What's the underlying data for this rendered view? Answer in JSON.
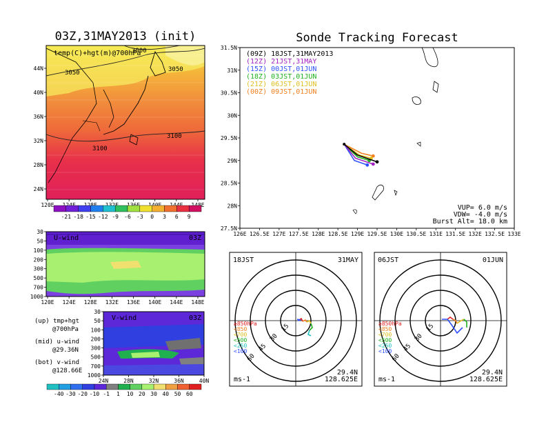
{
  "map_panel": {
    "title": "03Z,31MAY2013 (init)",
    "label": "temp(C)+hgt(m)@700hPa",
    "contours": [
      "3050",
      "3050",
      "3000",
      "3100",
      "3100"
    ],
    "lat_ticks": [
      "44N",
      "40N",
      "36N",
      "32N",
      "28N",
      "24N"
    ],
    "lon_ticks": [
      "120E",
      "124E",
      "128E",
      "132E",
      "136E",
      "140E",
      "144E",
      "148E"
    ],
    "colorbar": [
      "-21",
      "-18",
      "-15",
      "-12",
      "-9",
      "-6",
      "-3",
      "0",
      "3",
      "6",
      "9"
    ]
  },
  "u_panel": {
    "label": "U-wind",
    "time": "03Z",
    "p_ticks": [
      "30",
      "50",
      "100",
      "200",
      "300",
      "500",
      "700",
      "1000"
    ],
    "lon_ticks": [
      "120E",
      "124E",
      "128E",
      "132E",
      "136E",
      "140E",
      "144E",
      "148E"
    ]
  },
  "v_panel": {
    "label": "V-wind",
    "time": "03Z",
    "p_ticks": [
      "30",
      "50",
      "100",
      "200",
      "300",
      "500",
      "700",
      "1000"
    ],
    "lat_ticks": [
      "24N",
      "28N",
      "32N",
      "36N",
      "40N"
    ],
    "colorbar": [
      "-40",
      "-30",
      "-20",
      "-10",
      "-1",
      "1",
      "10",
      "20",
      "30",
      "40",
      "50",
      "60"
    ]
  },
  "notes": {
    "up": "(up) tmp+hgt",
    "up2": "@700hPa",
    "mid": "(mid) u-wind",
    "mid2": "@29.36N",
    "bot": "(bot) v-wind",
    "bot2": "@128.66E"
  },
  "track": {
    "title": "Sonde Tracking Forecast",
    "lat_ticks": [
      "31.5N",
      "31N",
      "30.5N",
      "30N",
      "29.5N",
      "29N",
      "28.5N",
      "28N",
      "27.5N"
    ],
    "lon_ticks": [
      "126E",
      "126.5E",
      "127E",
      "127.5E",
      "128E",
      "128.5E",
      "129E",
      "129.5E",
      "130E",
      "130.5E",
      "131E",
      "131.5E",
      "132E",
      "132.5E",
      "133E"
    ],
    "legend": [
      {
        "text": "(09Z) 18JST,31MAY2013",
        "color": "#000000"
      },
      {
        "text": "(12Z) 21JST,31MAY",
        "color": "#a020c0"
      },
      {
        "text": "(15Z) 00JST,01JUN",
        "color": "#3050ff"
      },
      {
        "text": "(18Z) 03JST,01JUN",
        "color": "#20b020"
      },
      {
        "text": "(21Z) 06JST,01JUN",
        "color": "#e0c020"
      },
      {
        "text": "(00Z) 09JST,01JUN",
        "color": "#f08020"
      }
    ],
    "info": [
      "VUP= 6.0 m/s",
      "VDW= -4.0 m/s",
      "Burst Alt= 18.0 km"
    ]
  },
  "chart_data": [
    {
      "type": "line",
      "title": "Sonde Tracking Forecast",
      "xlim": [
        126,
        133
      ],
      "ylim": [
        27.5,
        31.5
      ],
      "series": [
        {
          "name": "(09Z) 18JST,31MAY2013",
          "x": [
            128.66,
            129.0,
            129.5
          ],
          "y": [
            29.36,
            29.12,
            28.97
          ]
        },
        {
          "name": "(12Z) 21JST,31MAY",
          "x": [
            128.66,
            128.95,
            129.4
          ],
          "y": [
            29.36,
            29.05,
            28.92
          ]
        },
        {
          "name": "(15Z) 00JST,01JUN",
          "x": [
            128.66,
            128.92,
            129.25
          ],
          "y": [
            29.36,
            29.0,
            28.9
          ]
        },
        {
          "name": "(18Z) 03JST,01JUN",
          "x": [
            128.66,
            129.0,
            129.3
          ],
          "y": [
            29.36,
            29.08,
            29.0
          ]
        },
        {
          "name": "(21Z) 06JST,01JUN",
          "x": [
            128.66,
            129.05,
            129.35
          ],
          "y": [
            29.36,
            29.12,
            29.05
          ]
        },
        {
          "name": "(00Z) 09JST,01JUN",
          "x": [
            128.66,
            129.1,
            129.4
          ],
          "y": [
            29.36,
            29.16,
            29.1
          ]
        }
      ]
    }
  ],
  "hodo_left": {
    "left": "18JST",
    "right": "31MAY",
    "levels": [
      {
        "t": "≥850hPa",
        "c": "#e02020"
      },
      {
        "t": "<850",
        "c": "#f08020"
      },
      {
        "t": "<700",
        "c": "#e0c020"
      },
      {
        "t": "<500",
        "c": "#20b020"
      },
      {
        "t": "<250",
        "c": "#20c0c0"
      },
      {
        "t": "<100",
        "c": "#3050ff"
      }
    ],
    "rings": [
      "15",
      "30",
      "45",
      "60"
    ],
    "unit": "ms-1",
    "lat": "29.4N",
    "lon": "128.625E"
  },
  "hodo_right": {
    "left": "06JST",
    "right": "01JUN",
    "levels": [
      {
        "t": "≥850hPa",
        "c": "#e02020"
      },
      {
        "t": "<850",
        "c": "#f08020"
      },
      {
        "t": "<700",
        "c": "#e0c020"
      },
      {
        "t": "<500",
        "c": "#20b020"
      },
      {
        "t": "<250",
        "c": "#20c0c0"
      },
      {
        "t": "<100",
        "c": "#3050ff"
      }
    ],
    "rings": [
      "15",
      "30",
      "45",
      "60"
    ],
    "unit": "ms-1",
    "lat": "29.4N",
    "lon": "128.625E"
  }
}
